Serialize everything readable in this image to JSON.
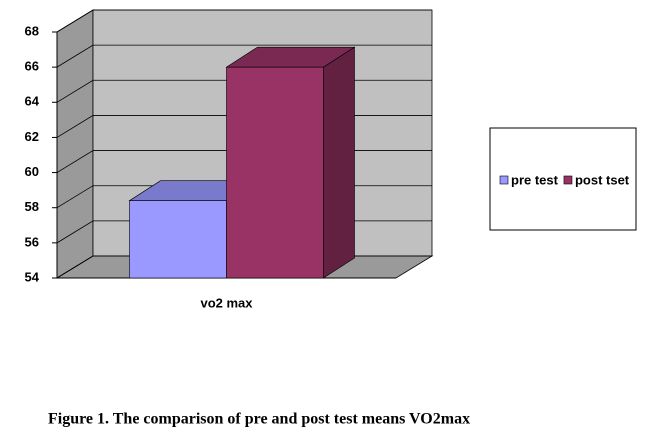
{
  "chart_data": {
    "type": "bar3d",
    "categories": [
      "vo2 max"
    ],
    "series": [
      {
        "name": "pre test",
        "color": "#9999ff",
        "values": [
          58.4
        ]
      },
      {
        "name": "post tset",
        "color": "#993366",
        "values": [
          66
        ]
      }
    ],
    "ylim": [
      54,
      68
    ],
    "yticks": [
      54,
      56,
      58,
      60,
      62,
      64,
      66,
      68
    ],
    "grid": true,
    "legend": "right",
    "caption": "Figure 1. The comparison of pre and post test means VO2max"
  }
}
